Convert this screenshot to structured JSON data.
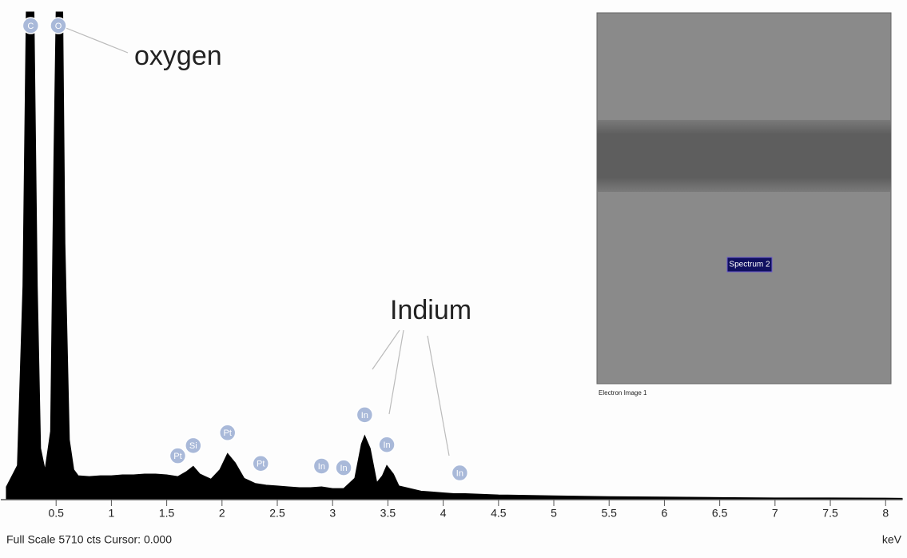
{
  "chart_data": {
    "type": "area",
    "color": "#000000",
    "x": [
      0.05,
      0.15,
      0.2,
      0.23,
      0.3,
      0.33,
      0.36,
      0.4,
      0.45,
      0.48,
      0.5,
      0.56,
      0.58,
      0.62,
      0.66,
      0.7,
      0.8,
      0.9,
      1.0,
      1.1,
      1.2,
      1.3,
      1.4,
      1.5,
      1.6,
      1.68,
      1.74,
      1.8,
      1.9,
      1.98,
      2.05,
      2.12,
      2.2,
      2.3,
      2.4,
      2.5,
      2.6,
      2.7,
      2.8,
      2.9,
      3.0,
      3.1,
      3.2,
      3.26,
      3.29,
      3.34,
      3.4,
      3.45,
      3.49,
      3.55,
      3.6,
      3.7,
      3.8,
      3.9,
      4.0,
      4.1,
      4.2,
      4.5,
      5.0,
      5.5,
      6.0,
      6.5,
      7.0,
      7.5,
      8.0,
      8.15
    ],
    "values": [
      150,
      400,
      2500,
      5710,
      5710,
      2500,
      600,
      350,
      800,
      4000,
      5710,
      5710,
      3000,
      700,
      350,
      280,
      270,
      280,
      280,
      290,
      290,
      300,
      300,
      290,
      270,
      330,
      390,
      300,
      240,
      350,
      540,
      430,
      250,
      190,
      170,
      160,
      150,
      140,
      140,
      150,
      130,
      130,
      250,
      650,
      750,
      600,
      200,
      280,
      400,
      300,
      160,
      130,
      100,
      90,
      80,
      70,
      70,
      55,
      45,
      35,
      30,
      25,
      20,
      20,
      18,
      15
    ],
    "xlim": [
      0,
      8.15
    ],
    "ylim": [
      0,
      5710
    ],
    "xticks": [
      0.5,
      1,
      1.5,
      2,
      2.5,
      3,
      3.5,
      4,
      4.5,
      5,
      5.5,
      6,
      6.5,
      7,
      7.5,
      8
    ],
    "x_unit": "keV",
    "footer": "Full Scale 5710 cts Cursor: 0.000",
    "peaks": [
      {
        "label": "C",
        "x": 0.27
      },
      {
        "label": "O",
        "x": 0.52
      },
      {
        "label": "Pt",
        "x": 1.6
      },
      {
        "label": "Si",
        "x": 1.74
      },
      {
        "label": "Pt",
        "x": 2.05
      },
      {
        "label": "Pt",
        "x": 2.35
      },
      {
        "label": "In",
        "x": 2.9
      },
      {
        "label": "In",
        "x": 3.1
      },
      {
        "label": "In",
        "x": 3.29
      },
      {
        "label": "In",
        "x": 3.49
      },
      {
        "label": "In",
        "x": 4.15
      }
    ],
    "annotations": [
      "oxygen",
      "Indium"
    ],
    "inset": {
      "label": "Spectrum 2",
      "caption": "Electron Image 1"
    }
  }
}
